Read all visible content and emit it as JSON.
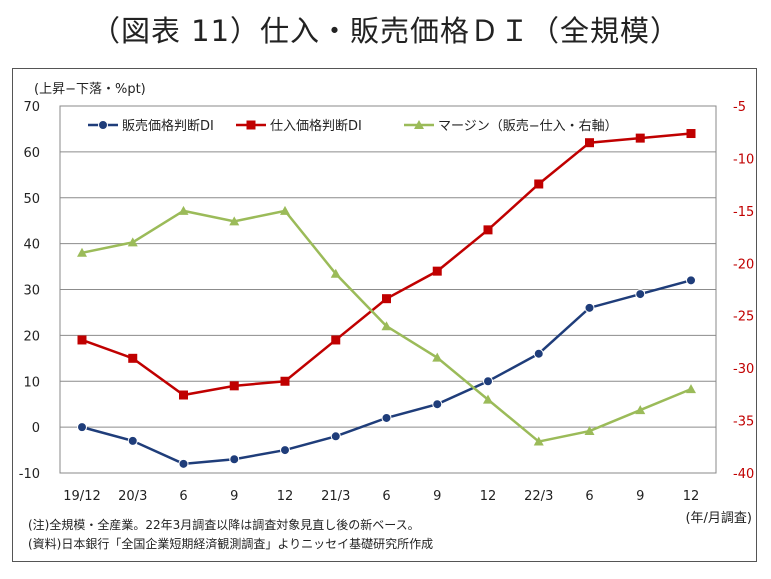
{
  "title": "（図表 11）仕入・販売価格ＤＩ（全規模）",
  "chart_data": {
    "type": "line",
    "categories": [
      "19/12",
      "20/3",
      "6",
      "9",
      "12",
      "21/3",
      "6",
      "9",
      "12",
      "22/3",
      "6",
      "9",
      "12"
    ],
    "ylabel_left": "(上昇−下落・%pt)",
    "xlabel": "(年/月調査)",
    "ylim_left": [
      -10,
      70
    ],
    "yticks_left": [
      -10,
      0,
      10,
      20,
      30,
      40,
      50,
      60,
      70
    ],
    "ylim_right": [
      -40,
      -5
    ],
    "yticks_right": [
      -40,
      -35,
      -30,
      -25,
      -20,
      -15,
      -10,
      -5
    ],
    "grid": true,
    "legend_position": "top",
    "series": [
      {
        "name": "販売価格判断DI",
        "axis": "left",
        "color": "#1f3d7a",
        "marker": "circle",
        "values": [
          0,
          -3,
          -8,
          -7,
          -5,
          -2,
          2,
          5,
          10,
          16,
          26,
          29,
          32
        ]
      },
      {
        "name": "仕入価格判断DI",
        "axis": "left",
        "color": "#c00000",
        "marker": "square",
        "values": [
          19,
          15,
          7,
          9,
          10,
          19,
          28,
          34,
          43,
          53,
          62,
          63,
          64
        ]
      },
      {
        "name": "マージン（販売−仕入・右軸）",
        "axis": "right",
        "color": "#9bbb59",
        "marker": "triangle",
        "values": [
          -19,
          -18,
          -15,
          -16,
          -15,
          -21,
          -26,
          -29,
          -33,
          -37,
          -36,
          -34,
          -32
        ]
      }
    ]
  },
  "notes": [
    "(注)全規模・全産業。22年3月調査以降は調査対象見直し後の新ベース。",
    "(資料)日本銀行「全国企業短期経済観測調査」よりニッセイ基礎研究所作成"
  ]
}
